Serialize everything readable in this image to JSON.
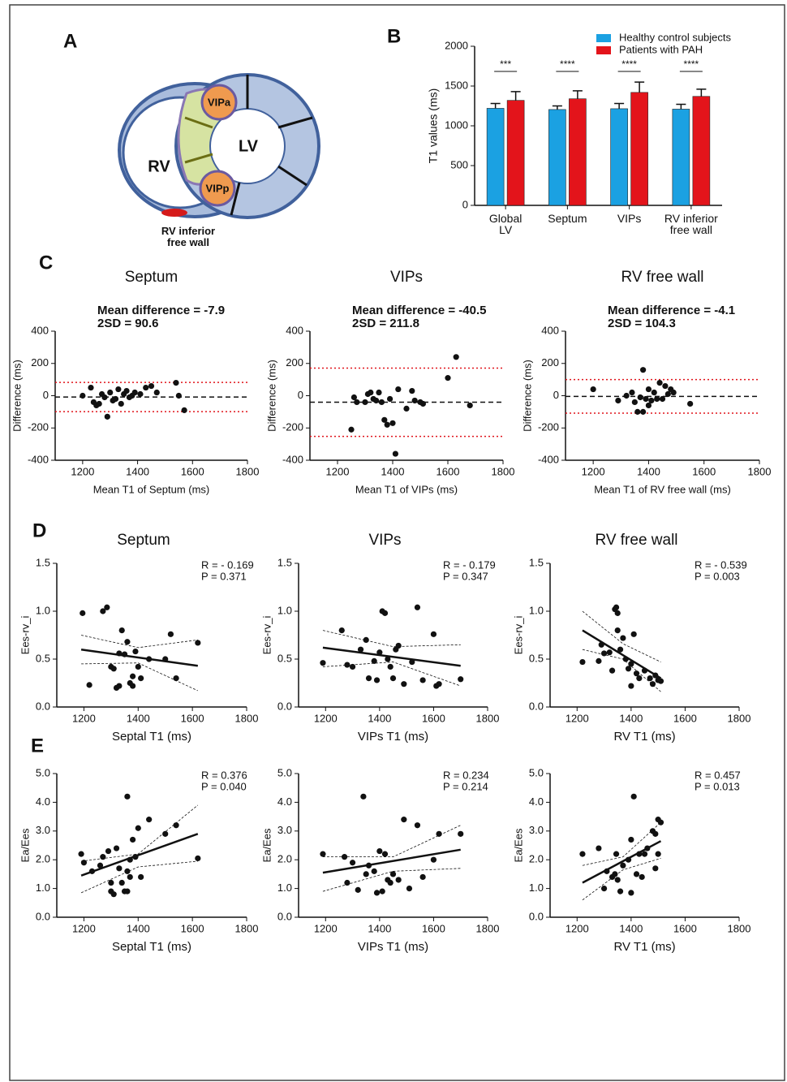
{
  "panel_labels": {
    "a": "A",
    "b": "B",
    "c": "C",
    "d": "D",
    "e": "E"
  },
  "diagram": {
    "rv": "RV",
    "lv": "LV",
    "vipa": "VIPa",
    "vipp": "VIPp",
    "free_wall": "RV inferior free wall"
  },
  "chart_data": [
    {
      "type": "bar",
      "ylabel": "T1 values (ms)",
      "categories": [
        "Global LV",
        "Septum",
        "VIPs",
        "RV inferior free wall"
      ],
      "series": [
        {
          "name": "Healthy control subjects",
          "color": "#1ba1e2",
          "values": [
            1220,
            1205,
            1215,
            1210
          ],
          "errors": [
            60,
            45,
            65,
            60
          ]
        },
        {
          "name": "Patients with PAH",
          "color": "#e3141b",
          "values": [
            1320,
            1340,
            1420,
            1370
          ],
          "errors": [
            110,
            100,
            130,
            90
          ]
        }
      ],
      "annotations": [
        "***",
        "****",
        "****",
        "****"
      ],
      "ylim": [
        0,
        2000
      ],
      "yticks": [
        0,
        500,
        1000,
        1500,
        2000
      ],
      "legend": "top-right"
    },
    {
      "type": "scatter",
      "title": "Septum",
      "annotations": [
        "Mean difference = -7.9",
        "2SD = 90.6"
      ],
      "xlabel": "Mean T1 of Septum (ms)",
      "ylabel": "Difference (ms)",
      "xlim": [
        1100,
        1800
      ],
      "xticks": [
        1200,
        1400,
        1600,
        1800
      ],
      "ylim": [
        -400,
        400
      ],
      "yticks": [
        -400,
        -200,
        0,
        200,
        400
      ],
      "hlines": [
        {
          "value": -7.9,
          "style": "dashed"
        },
        {
          "value": 82.7,
          "style": "dotted"
        },
        {
          "value": -98.5,
          "style": "dotted"
        }
      ],
      "x": [
        1200,
        1230,
        1240,
        1250,
        1260,
        1270,
        1280,
        1290,
        1300,
        1310,
        1320,
        1330,
        1340,
        1350,
        1360,
        1370,
        1380,
        1390,
        1410,
        1430,
        1450,
        1470,
        1540,
        1550,
        1570
      ],
      "values": [
        0,
        50,
        -40,
        -60,
        -50,
        10,
        -10,
        -130,
        20,
        -30,
        -20,
        40,
        -50,
        10,
        30,
        -10,
        0,
        20,
        10,
        50,
        60,
        20,
        80,
        0,
        -90
      ]
    },
    {
      "type": "scatter",
      "title": "VIPs",
      "annotations": [
        "Mean difference = -40.5",
        "2SD = 211.8"
      ],
      "xlabel": "Mean T1 of VIPs (ms)",
      "ylabel": "Difference (ms)",
      "xlim": [
        1100,
        1800
      ],
      "xticks": [
        1200,
        1400,
        1600,
        1800
      ],
      "ylim": [
        -400,
        400
      ],
      "yticks": [
        -400,
        -200,
        0,
        200,
        400
      ],
      "hlines": [
        {
          "value": -40.5,
          "style": "dashed"
        },
        {
          "value": 171.3,
          "style": "dotted"
        },
        {
          "value": -252.3,
          "style": "dotted"
        }
      ],
      "x": [
        1250,
        1260,
        1270,
        1300,
        1310,
        1320,
        1330,
        1340,
        1350,
        1360,
        1370,
        1380,
        1390,
        1400,
        1410,
        1420,
        1450,
        1470,
        1480,
        1500,
        1510,
        1600,
        1630,
        1680
      ],
      "values": [
        -210,
        -10,
        -40,
        -40,
        10,
        20,
        -20,
        -30,
        20,
        -40,
        -150,
        -180,
        -20,
        -170,
        -360,
        40,
        -80,
        30,
        -30,
        -40,
        -50,
        110,
        240,
        -60
      ]
    },
    {
      "type": "scatter",
      "title": "RV free wall",
      "annotations": [
        "Mean difference = -4.1",
        "2SD = 104.3"
      ],
      "xlabel": "Mean T1 of RV free wall (ms)",
      "ylabel": "Difference (ms)",
      "xlim": [
        1100,
        1800
      ],
      "xticks": [
        1200,
        1400,
        1600,
        1800
      ],
      "ylim": [
        -400,
        400
      ],
      "yticks": [
        -400,
        -200,
        0,
        200,
        400
      ],
      "hlines": [
        {
          "value": -4.1,
          "style": "dashed"
        },
        {
          "value": 100.2,
          "style": "dotted"
        },
        {
          "value": -108.4,
          "style": "dotted"
        }
      ],
      "x": [
        1200,
        1290,
        1320,
        1340,
        1350,
        1360,
        1370,
        1380,
        1390,
        1400,
        1410,
        1420,
        1430,
        1440,
        1450,
        1460,
        1470,
        1480,
        1490,
        1550,
        1380,
        1400
      ],
      "values": [
        40,
        -30,
        0,
        20,
        -40,
        -100,
        -10,
        160,
        -20,
        40,
        -30,
        20,
        -20,
        80,
        -20,
        60,
        10,
        40,
        20,
        -50,
        -100,
        -60
      ]
    },
    {
      "type": "scatter",
      "title": "Septum",
      "annotations": [
        "R = - 0.169",
        "P = 0.371"
      ],
      "xlabel": "Septal T1 (ms)",
      "ylabel": "Ees-rv_i",
      "xlim": [
        1100,
        1800
      ],
      "xticks": [
        1200,
        1400,
        1600,
        1800
      ],
      "ylim": [
        0,
        1.5
      ],
      "yticks": [
        {
          "value": 0,
          "label": "0.0"
        },
        0.5,
        {
          "value": 1,
          "label": "1.0"
        },
        1.5
      ],
      "x": [
        1195,
        1220,
        1270,
        1285,
        1300,
        1310,
        1320,
        1330,
        1340,
        1350,
        1360,
        1370,
        1380,
        1390,
        1400,
        1410,
        1440,
        1500,
        1520,
        1540,
        1620,
        1330,
        1380
      ],
      "values": [
        0.98,
        0.23,
        1.0,
        1.04,
        0.42,
        0.4,
        0.2,
        0.56,
        0.8,
        0.55,
        0.68,
        0.25,
        0.32,
        0.58,
        0.42,
        0.3,
        0.5,
        0.5,
        0.76,
        0.3,
        0.67,
        0.22,
        0.22
      ],
      "fit": {
        "x": [
          1190,
          1620
        ],
        "values": [
          0.6,
          0.43
        ]
      },
      "ci_upper": {
        "x": [
          1190,
          1400,
          1620
        ],
        "values": [
          0.75,
          0.62,
          0.7
        ]
      },
      "ci_lower": {
        "x": [
          1190,
          1400,
          1620
        ],
        "values": [
          0.45,
          0.46,
          0.17
        ]
      }
    },
    {
      "type": "scatter",
      "title": "VIPs",
      "annotations": [
        "R = - 0.179",
        "P = 0.347"
      ],
      "xlabel": "VIPs T1 (ms)",
      "ylabel": "Ees-rv_i",
      "xlim": [
        1100,
        1800
      ],
      "xticks": [
        1200,
        1400,
        1600,
        1800
      ],
      "ylim": [
        0,
        1.5
      ],
      "yticks": [
        {
          "value": 0,
          "label": "0.0"
        },
        0.5,
        {
          "value": 1,
          "label": "1.0"
        },
        1.5
      ],
      "x": [
        1190,
        1260,
        1280,
        1300,
        1330,
        1350,
        1360,
        1380,
        1390,
        1400,
        1410,
        1420,
        1430,
        1440,
        1450,
        1460,
        1470,
        1490,
        1520,
        1540,
        1560,
        1600,
        1610,
        1620,
        1700
      ],
      "values": [
        0.46,
        0.8,
        0.44,
        0.42,
        0.6,
        0.7,
        0.3,
        0.48,
        0.28,
        0.57,
        1.0,
        0.98,
        0.5,
        0.42,
        0.3,
        0.6,
        0.64,
        0.24,
        0.47,
        1.04,
        0.28,
        0.76,
        0.22,
        0.24,
        0.29
      ],
      "fit": {
        "x": [
          1190,
          1700
        ],
        "values": [
          0.62,
          0.43
        ]
      },
      "ci_upper": {
        "x": [
          1190,
          1450,
          1700
        ],
        "values": [
          0.8,
          0.63,
          0.65
        ]
      },
      "ci_lower": {
        "x": [
          1190,
          1450,
          1700
        ],
        "values": [
          0.42,
          0.47,
          0.22
        ]
      }
    },
    {
      "type": "scatter",
      "title": "RV free wall",
      "annotations": [
        "R = - 0.539",
        "P = 0.003"
      ],
      "xlabel": "RV T1 (ms)",
      "ylabel": "Ees-rv_i",
      "xlim": [
        1100,
        1800
      ],
      "xticks": [
        1200,
        1400,
        1600,
        1800
      ],
      "ylim": [
        0,
        1.5
      ],
      "yticks": [
        {
          "value": 0,
          "label": "0.0"
        },
        0.5,
        {
          "value": 1,
          "label": "1.0"
        },
        1.5
      ],
      "x": [
        1220,
        1280,
        1290,
        1300,
        1320,
        1330,
        1340,
        1345,
        1350,
        1350,
        1360,
        1370,
        1380,
        1390,
        1400,
        1400,
        1410,
        1420,
        1430,
        1450,
        1470,
        1480,
        1490,
        1500,
        1510
      ],
      "values": [
        0.47,
        0.48,
        0.65,
        0.56,
        0.57,
        0.38,
        1.02,
        1.04,
        0.98,
        0.8,
        0.6,
        0.72,
        0.5,
        0.4,
        0.22,
        0.45,
        0.76,
        0.35,
        0.3,
        0.38,
        0.3,
        0.24,
        0.33,
        0.28,
        0.27
      ],
      "fit": {
        "x": [
          1220,
          1510
        ],
        "values": [
          0.8,
          0.3
        ]
      },
      "ci_upper": {
        "x": [
          1220,
          1370,
          1510
        ],
        "values": [
          1.0,
          0.66,
          0.47
        ]
      },
      "ci_lower": {
        "x": [
          1220,
          1370,
          1510
        ],
        "values": [
          0.6,
          0.5,
          0.16
        ]
      }
    },
    {
      "type": "scatter",
      "annotations": [
        "R = 0.376",
        "P = 0.040"
      ],
      "xlabel": "Septal T1 (ms)",
      "ylabel": "Ea/Ees",
      "xlim": [
        1100,
        1800
      ],
      "xticks": [
        1200,
        1400,
        1600,
        1800
      ],
      "ylim": [
        0,
        5
      ],
      "yticks": [
        {
          "value": 0,
          "label": "0.0"
        },
        {
          "value": 1,
          "label": "1.0"
        },
        {
          "value": 2,
          "label": "2.0"
        },
        {
          "value": 3,
          "label": "3.0"
        },
        {
          "value": 4,
          "label": "4.0"
        },
        {
          "value": 5,
          "label": "5.0"
        }
      ],
      "x": [
        1190,
        1200,
        1230,
        1260,
        1270,
        1290,
        1300,
        1300,
        1310,
        1320,
        1330,
        1340,
        1350,
        1360,
        1360,
        1370,
        1370,
        1380,
        1390,
        1400,
        1410,
        1440,
        1500,
        1540,
        1620,
        1360
      ],
      "values": [
        2.2,
        1.9,
        1.6,
        1.8,
        2.1,
        2.3,
        1.2,
        0.9,
        0.8,
        2.4,
        1.7,
        1.2,
        0.9,
        4.2,
        1.6,
        1.4,
        2.0,
        2.7,
        2.1,
        3.1,
        1.4,
        3.4,
        2.9,
        3.2,
        2.05,
        0.9
      ],
      "fit": {
        "x": [
          1190,
          1620
        ],
        "values": [
          1.45,
          2.9
        ]
      },
      "ci_upper": {
        "x": [
          1190,
          1400,
          1620
        ],
        "values": [
          1.95,
          2.2,
          3.9
        ]
      },
      "ci_lower": {
        "x": [
          1190,
          1400,
          1620
        ],
        "values": [
          0.85,
          1.75,
          1.95
        ]
      }
    },
    {
      "type": "scatter",
      "annotations": [
        "R = 0.234",
        "P = 0.214"
      ],
      "xlabel": "VIPs T1 (ms)",
      "ylabel": "Ea/Ees",
      "xlim": [
        1100,
        1800
      ],
      "xticks": [
        1200,
        1400,
        1600,
        1800
      ],
      "ylim": [
        0,
        5
      ],
      "yticks": [
        {
          "value": 0,
          "label": "0.0"
        },
        {
          "value": 1,
          "label": "1.0"
        },
        {
          "value": 2,
          "label": "2.0"
        },
        {
          "value": 3,
          "label": "3.0"
        },
        {
          "value": 4,
          "label": "4.0"
        },
        {
          "value": 5,
          "label": "5.0"
        }
      ],
      "x": [
        1190,
        1270,
        1280,
        1300,
        1320,
        1340,
        1350,
        1360,
        1380,
        1390,
        1400,
        1410,
        1420,
        1430,
        1440,
        1450,
        1470,
        1490,
        1510,
        1540,
        1560,
        1600,
        1620,
        1700
      ],
      "values": [
        2.2,
        2.1,
        1.2,
        1.9,
        0.95,
        4.2,
        1.5,
        1.8,
        1.6,
        0.85,
        2.3,
        0.9,
        2.2,
        1.3,
        1.2,
        1.5,
        1.3,
        3.4,
        1.0,
        3.2,
        1.4,
        2.0,
        2.9,
        2.9
      ],
      "fit": {
        "x": [
          1190,
          1700
        ],
        "values": [
          1.55,
          2.35
        ]
      },
      "ci_upper": {
        "x": [
          1190,
          1450,
          1700
        ],
        "values": [
          2.1,
          2.1,
          3.2
        ]
      },
      "ci_lower": {
        "x": [
          1190,
          1450,
          1700
        ],
        "values": [
          0.9,
          1.6,
          1.7
        ]
      }
    },
    {
      "type": "scatter",
      "annotations": [
        "R = 0.457",
        "P = 0.013"
      ],
      "xlabel": "RV T1 (ms)",
      "ylabel": "Ea/Ees",
      "xlim": [
        1100,
        1800
      ],
      "xticks": [
        1200,
        1400,
        1600,
        1800
      ],
      "ylim": [
        0,
        5
      ],
      "yticks": [
        {
          "value": 0,
          "label": "0.0"
        },
        {
          "value": 1,
          "label": "1.0"
        },
        {
          "value": 2,
          "label": "2.0"
        },
        {
          "value": 3,
          "label": "3.0"
        },
        {
          "value": 4,
          "label": "4.0"
        },
        {
          "value": 5,
          "label": "5.0"
        }
      ],
      "x": [
        1220,
        1280,
        1300,
        1310,
        1330,
        1340,
        1345,
        1350,
        1360,
        1370,
        1390,
        1400,
        1400,
        1410,
        1420,
        1430,
        1440,
        1450,
        1460,
        1480,
        1490,
        1500,
        1500,
        1510,
        1490
      ],
      "values": [
        2.2,
        2.4,
        1.0,
        1.6,
        1.4,
        1.5,
        2.2,
        1.3,
        0.9,
        1.8,
        2.0,
        2.7,
        0.85,
        4.2,
        1.5,
        2.2,
        1.4,
        2.2,
        2.4,
        3.0,
        2.9,
        3.4,
        2.2,
        3.3,
        1.7
      ],
      "fit": {
        "x": [
          1220,
          1510
        ],
        "values": [
          1.2,
          2.65
        ]
      },
      "ci_upper": {
        "x": [
          1220,
          1370,
          1510
        ],
        "values": [
          1.8,
          2.1,
          3.3
        ]
      },
      "ci_lower": {
        "x": [
          1220,
          1370,
          1510
        ],
        "values": [
          0.6,
          1.65,
          2.05
        ]
      }
    }
  ]
}
